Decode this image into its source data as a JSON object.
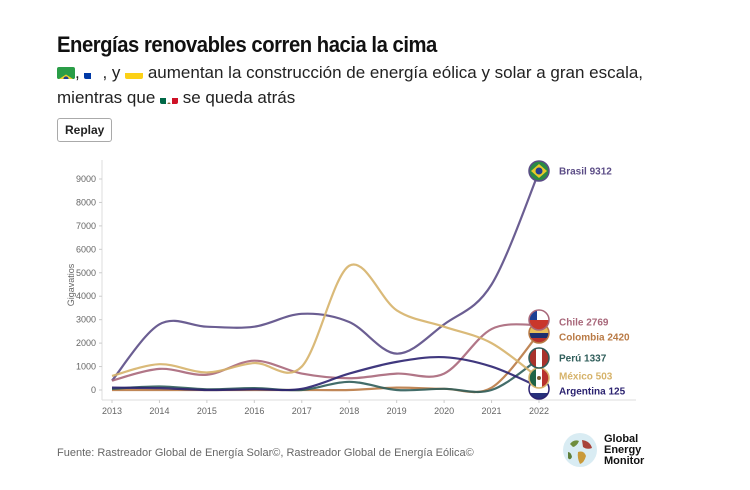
{
  "title": "Energías renovables corren hacia la cima",
  "subtitle": {
    "part1": ", ",
    "part2": ", y ",
    "part3": " aumentan la construcción de energía eólica y solar a gran escala, mientras que ",
    "part4": " se queda atrás"
  },
  "replay_label": "Replay",
  "source": "Fuente: Rastreador Global de Energía Solar©, Rastreador Global de Energía Eólica©",
  "logo": {
    "line1": "Global",
    "line2": "Energy",
    "line3": "Monitor"
  },
  "chart_data": {
    "type": "line",
    "ylabel": "Gigavatios",
    "x": [
      2013,
      2014,
      2015,
      2016,
      2017,
      2018,
      2019,
      2020,
      2021,
      2022
    ],
    "ylim": [
      0,
      9500
    ],
    "yticks": [
      0,
      1000,
      2000,
      3000,
      4000,
      5000,
      6000,
      7000,
      8000,
      9000
    ],
    "grid": false,
    "series": [
      {
        "name": "Brasil",
        "color": "#5b4c86",
        "end_label": "Brasil 9312",
        "values": [
          400,
          2800,
          2700,
          2700,
          3250,
          2900,
          1550,
          2800,
          4500,
          9312
        ]
      },
      {
        "name": "Chile",
        "color": "#a8677a",
        "end_label": "Chile 2769",
        "values": [
          400,
          900,
          650,
          1250,
          700,
          500,
          700,
          700,
          2600,
          2769
        ]
      },
      {
        "name": "Colombia",
        "color": "#b97a45",
        "end_label": "Colombia 2420",
        "values": [
          0,
          0,
          0,
          0,
          0,
          0,
          100,
          50,
          100,
          2420
        ]
      },
      {
        "name": "Perú",
        "color": "#2f5d5a",
        "end_label": "Perú 1337",
        "values": [
          50,
          150,
          30,
          80,
          0,
          350,
          0,
          50,
          0,
          1337
        ]
      },
      {
        "name": "México",
        "color": "#d6b36a",
        "end_label": "México 503",
        "values": [
          600,
          1100,
          750,
          1150,
          1000,
          5300,
          3400,
          2700,
          2000,
          503
        ]
      },
      {
        "name": "Argentina",
        "color": "#2b2270",
        "end_label": "Argentina 125",
        "values": [
          100,
          80,
          0,
          30,
          50,
          700,
          1200,
          1400,
          1000,
          125
        ]
      }
    ]
  }
}
